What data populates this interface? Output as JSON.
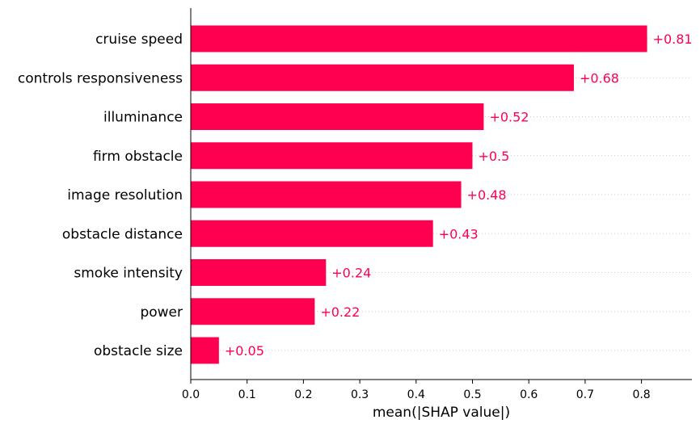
{
  "chart_data": {
    "type": "bar",
    "orientation": "horizontal",
    "categories": [
      "cruise speed",
      "controls responsiveness",
      "illuminance",
      "firm obstacle",
      "image resolution",
      "obstacle distance",
      "smoke intensity",
      "power",
      "obstacle size"
    ],
    "values": [
      0.81,
      0.68,
      0.52,
      0.5,
      0.48,
      0.43,
      0.24,
      0.22,
      0.05
    ],
    "value_labels": [
      "+0.81",
      "+0.68",
      "+0.52",
      "+0.5",
      "+0.48",
      "+0.43",
      "+0.24",
      "+0.22",
      "+0.05"
    ],
    "xlabel": "mean(|SHAP value|)",
    "xticks": [
      "0.0",
      "0.1",
      "0.2",
      "0.3",
      "0.4",
      "0.5",
      "0.6",
      "0.7",
      "0.8"
    ],
    "xlim": [
      0,
      0.89
    ],
    "grid": "dotted horizontal guide lines",
    "colors": {
      "bar": "#ff0051",
      "label": "#ff0051",
      "axis": "#000000",
      "guide": "#cccccc"
    }
  }
}
